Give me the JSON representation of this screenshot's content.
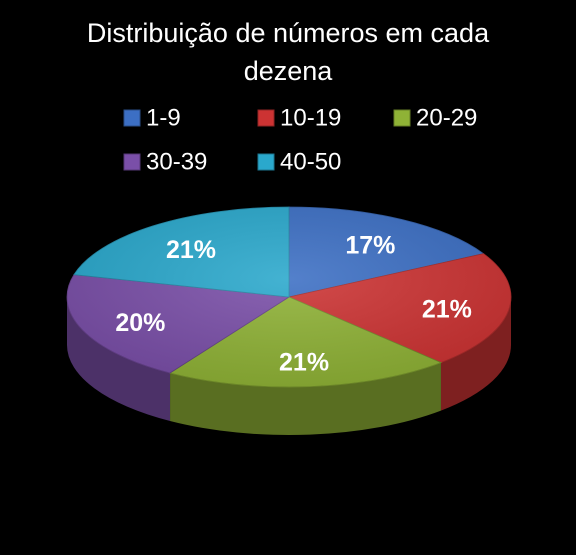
{
  "chart_data": {
    "type": "pie",
    "title_lines": [
      "Distribuição de números em cada",
      "dezena"
    ],
    "categories": [
      "1-9",
      "10-19",
      "20-29",
      "30-39",
      "40-50"
    ],
    "values": [
      17,
      21,
      21,
      20,
      21
    ],
    "value_labels": [
      "17%",
      "21%",
      "21%",
      "20%",
      "21%"
    ],
    "colors": [
      "#3c6fc4",
      "#cc3333",
      "#8fb236",
      "#7a4fa8",
      "#2aa8cc"
    ],
    "legend_position": "top",
    "style": "3d"
  }
}
